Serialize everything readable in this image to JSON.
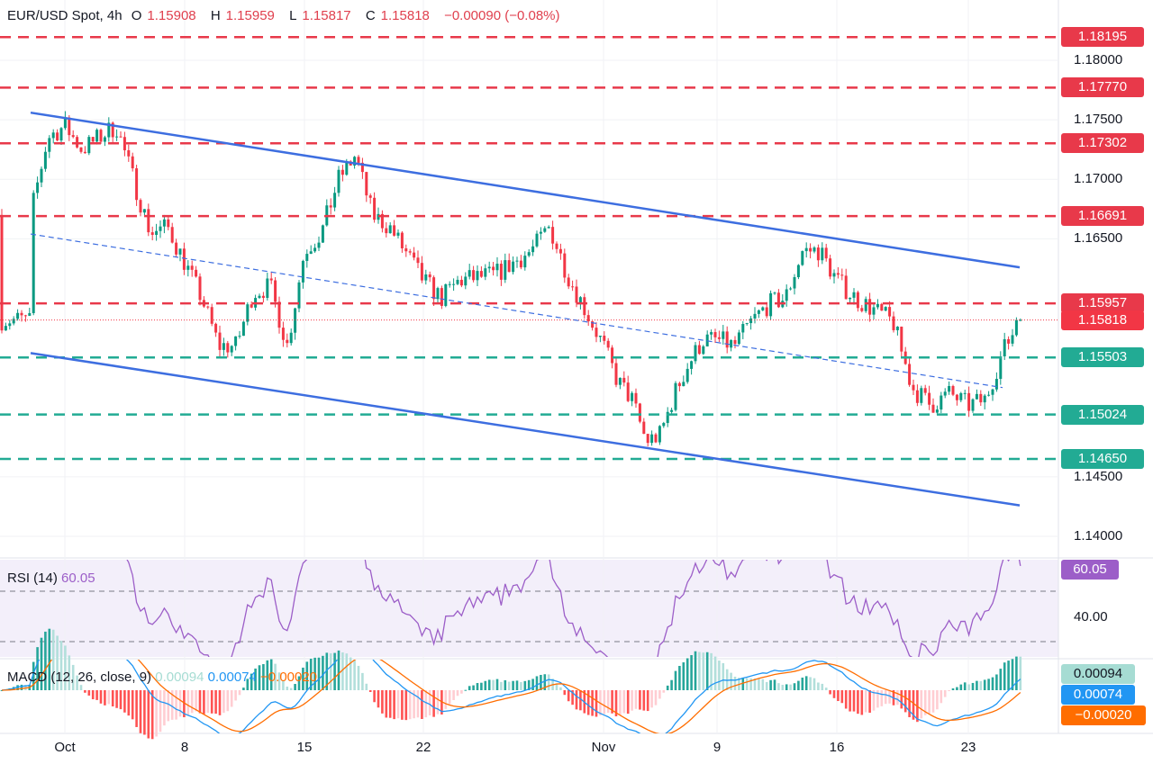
{
  "header": {
    "symbol": "EUR/USD Spot, 4h",
    "open_label": "O",
    "open": "1.15908",
    "high_label": "H",
    "high": "1.15959",
    "low_label": "L",
    "low": "1.15817",
    "close_label": "C",
    "close": "1.15818",
    "change": "−0.00090 (−0.08%)"
  },
  "colors": {
    "up": "#089981",
    "down": "#f23645",
    "resistance": "#e8394a",
    "support": "#22ab94",
    "channel": "#3d6ee0",
    "rsi": "#9c5ec8",
    "macd": "#2196f3",
    "signal": "#ff6d00"
  },
  "levels": [
    {
      "price": 1.18195,
      "label": "1.18195",
      "kind": "resistance"
    },
    {
      "price": 1.1777,
      "label": "1.17770",
      "kind": "resistance"
    },
    {
      "price": 1.17302,
      "label": "1.17302",
      "kind": "resistance"
    },
    {
      "price": 1.16691,
      "label": "1.16691",
      "kind": "resistance"
    },
    {
      "price": 1.15957,
      "label": "1.15957",
      "kind": "resistance"
    },
    {
      "price": 1.15503,
      "label": "1.15503",
      "kind": "support"
    },
    {
      "price": 1.15024,
      "label": "1.15024",
      "kind": "support"
    },
    {
      "price": 1.1465,
      "label": "1.14650",
      "kind": "support"
    }
  ],
  "current_price": {
    "price": 1.15818,
    "label": "1.15818"
  },
  "price_ticks": [
    {
      "price": 1.18,
      "label": "1.18000"
    },
    {
      "price": 1.175,
      "label": "1.17500"
    },
    {
      "price": 1.17,
      "label": "1.17000"
    },
    {
      "price": 1.165,
      "label": "1.16500"
    },
    {
      "price": 1.145,
      "label": "1.14500"
    },
    {
      "price": 1.14,
      "label": "1.14000"
    }
  ],
  "x_ticks": [
    "Oct",
    "8",
    "15",
    "22",
    "Nov",
    "9",
    "16",
    "23"
  ],
  "chart_data": {
    "type": "candlestick",
    "title": "EUR/USD Spot, 4h",
    "ylim": [
      1.138,
      1.184
    ],
    "grid": true,
    "path": [
      [
        "09-29",
        1.167
      ],
      [
        "09-30",
        1.1735
      ],
      [
        "10-01",
        1.1745
      ],
      [
        "10-02",
        1.1725
      ],
      [
        "10-03",
        1.1735
      ],
      [
        "10-04",
        1.1745
      ],
      [
        "10-06",
        1.1655
      ],
      [
        "10-07",
        1.166
      ],
      [
        "10-08",
        1.163
      ],
      [
        "10-09",
        1.16
      ],
      [
        "10-10",
        1.156
      ],
      [
        "10-11",
        1.156
      ],
      [
        "10-12",
        1.1605
      ],
      [
        "10-13",
        1.161
      ],
      [
        "10-14",
        1.156
      ],
      [
        "10-15",
        1.164
      ],
      [
        "10-16",
        1.1655
      ],
      [
        "10-17",
        1.17
      ],
      [
        "10-18",
        1.172
      ],
      [
        "10-19",
        1.167
      ],
      [
        "10-20",
        1.166
      ],
      [
        "10-22",
        1.1615
      ],
      [
        "10-23",
        1.16
      ],
      [
        "10-24",
        1.1615
      ],
      [
        "10-26",
        1.162
      ],
      [
        "10-28",
        1.164
      ],
      [
        "10-29",
        1.166
      ],
      [
        "10-30",
        1.162
      ],
      [
        "10-31",
        1.159
      ],
      [
        "11-01",
        1.156
      ],
      [
        "11-02",
        1.153
      ],
      [
        "11-03",
        1.1515
      ],
      [
        "11-04",
        1.148
      ],
      [
        "11-05",
        1.1485
      ],
      [
        "11-06",
        1.152
      ],
      [
        "11-07",
        1.1545
      ],
      [
        "11-08",
        1.1565
      ],
      [
        "11-09",
        1.1565
      ],
      [
        "11-10",
        1.156
      ],
      [
        "11-11",
        1.158
      ],
      [
        "11-12",
        1.1595
      ],
      [
        "11-13",
        1.16
      ],
      [
        "11-14",
        1.164
      ],
      [
        "11-15",
        1.164
      ],
      [
        "11-16",
        1.1615
      ],
      [
        "11-17",
        1.16
      ],
      [
        "11-18",
        1.159
      ],
      [
        "11-19",
        1.158
      ],
      [
        "11-20",
        1.1525
      ],
      [
        "11-21",
        1.151
      ],
      [
        "11-22",
        1.152
      ],
      [
        "11-23",
        1.151
      ],
      [
        "11-24",
        1.1515
      ],
      [
        "11-25",
        1.1555
      ],
      [
        "11-26",
        1.1582
      ]
    ],
    "channel": {
      "upper": [
        [
          "09-29",
          1.1756
        ],
        [
          "11-26",
          1.1626
        ]
      ],
      "lower": [
        [
          "09-29",
          1.1554
        ],
        [
          "11-26",
          1.1426
        ]
      ],
      "middle": [
        [
          "09-29",
          1.1654
        ],
        [
          "11-25",
          1.1525
        ]
      ]
    }
  },
  "rsi": {
    "label": "RSI (14)",
    "value": "60.05",
    "tick": "40.00"
  },
  "macd": {
    "label": "MACD (12, 26, close, 9)",
    "histogram": "0.00094",
    "macd": "0.00074",
    "signal": "−0.00020"
  }
}
